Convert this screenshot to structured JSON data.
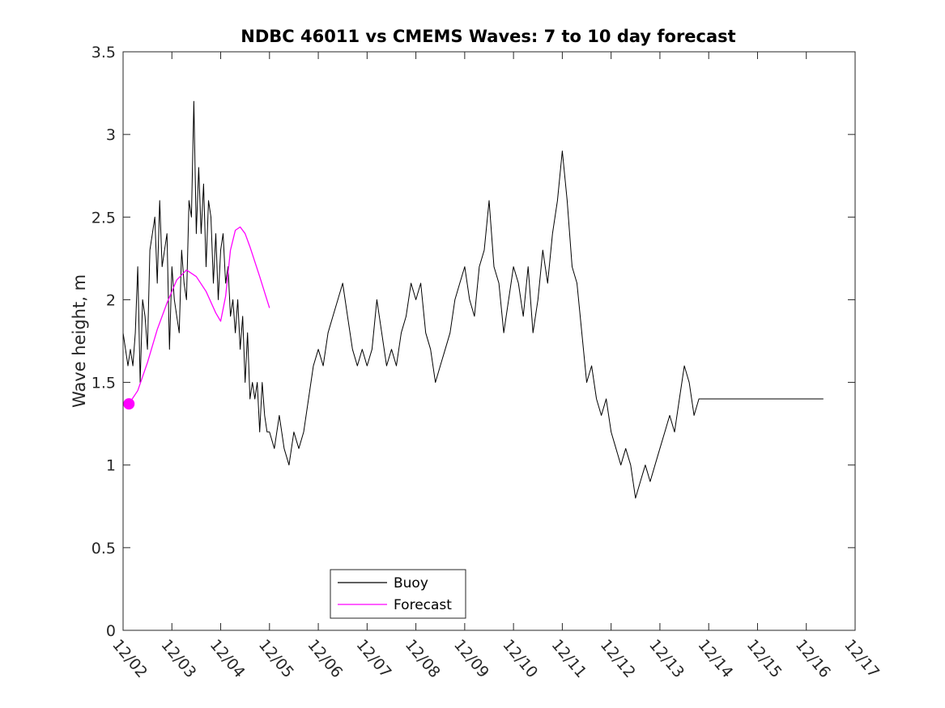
{
  "chart_data": {
    "type": "line",
    "title": "NDBC 46011 vs CMEMS Waves: 7 to 10 day forecast",
    "xlabel": "",
    "ylabel": "Wave height, m",
    "xlim": [
      0,
      15
    ],
    "ylim": [
      0,
      3.5
    ],
    "x_unit": "days since 12/02",
    "x_ticks": [
      0,
      1,
      2,
      3,
      4,
      5,
      6,
      7,
      8,
      9,
      10,
      11,
      12,
      13,
      14,
      15
    ],
    "x_tick_labels": [
      "12/02",
      "12/03",
      "12/04",
      "12/05",
      "12/06",
      "12/07",
      "12/08",
      "12/09",
      "12/10",
      "12/11",
      "12/12",
      "12/13",
      "12/14",
      "12/15",
      "12/16",
      "12/17"
    ],
    "y_ticks": [
      0,
      0.5,
      1,
      1.5,
      2,
      2.5,
      3,
      3.5
    ],
    "y_tick_labels": [
      "0",
      "0.5",
      "1",
      "1.5",
      "2",
      "2.5",
      "3",
      "3.5"
    ],
    "legend": {
      "location": "bottom-left",
      "entries": [
        "Buoy",
        "Forecast"
      ]
    },
    "series": [
      {
        "name": "Buoy",
        "color": "#000000",
        "x": [
          0,
          0.05,
          0.1,
          0.15,
          0.2,
          0.25,
          0.3,
          0.35,
          0.4,
          0.45,
          0.5,
          0.55,
          0.6,
          0.65,
          0.7,
          0.75,
          0.8,
          0.85,
          0.9,
          0.95,
          1,
          1.05,
          1.1,
          1.15,
          1.2,
          1.25,
          1.3,
          1.35,
          1.4,
          1.45,
          1.5,
          1.55,
          1.6,
          1.65,
          1.7,
          1.75,
          1.8,
          1.85,
          1.9,
          1.95,
          2,
          2.05,
          2.1,
          2.15,
          2.2,
          2.25,
          2.3,
          2.35,
          2.4,
          2.45,
          2.5,
          2.55,
          2.6,
          2.65,
          2.7,
          2.75,
          2.8,
          2.85,
          2.9,
          2.95,
          3,
          3.1,
          3.2,
          3.3,
          3.4,
          3.5,
          3.6,
          3.7,
          3.8,
          3.9,
          4,
          4.1,
          4.2,
          4.3,
          4.4,
          4.5,
          4.6,
          4.7,
          4.8,
          4.9,
          5,
          5.1,
          5.2,
          5.3,
          5.4,
          5.5,
          5.6,
          5.7,
          5.8,
          5.9,
          6,
          6.1,
          6.2,
          6.3,
          6.4,
          6.5,
          6.6,
          6.7,
          6.8,
          6.9,
          7,
          7.1,
          7.2,
          7.3,
          7.4,
          7.5,
          7.6,
          7.7,
          7.8,
          7.9,
          8,
          8.1,
          8.2,
          8.3,
          8.4,
          8.5,
          8.6,
          8.7,
          8.8,
          8.9,
          9,
          9.1,
          9.2,
          9.3,
          9.4,
          9.5,
          9.6,
          9.7,
          9.8,
          9.9,
          10,
          10.1,
          10.2,
          10.3,
          10.4,
          10.5,
          10.6,
          10.7,
          10.8,
          10.9,
          11,
          11.1,
          11.2,
          11.3,
          11.4,
          11.5,
          11.6,
          11.7,
          11.8,
          11.9,
          12,
          12.1,
          12.2,
          12.3,
          12.4,
          12.5,
          12.6,
          12.7,
          12.8,
          12.9,
          13,
          13.1,
          13.2,
          13.3,
          13.4,
          13.5,
          13.6,
          13.7,
          13.8,
          13.9,
          14,
          14.1,
          14.2,
          14.3,
          14.35
        ],
        "values": [
          1.8,
          1.7,
          1.6,
          1.7,
          1.6,
          1.8,
          2.2,
          1.5,
          2.0,
          1.9,
          1.7,
          2.3,
          2.4,
          2.5,
          2.1,
          2.6,
          2.2,
          2.3,
          2.4,
          1.7,
          2.2,
          2.0,
          1.9,
          1.8,
          2.3,
          2.1,
          2.0,
          2.6,
          2.5,
          3.2,
          2.4,
          2.8,
          2.4,
          2.7,
          2.2,
          2.6,
          2.5,
          2.1,
          2.4,
          2.0,
          2.3,
          2.4,
          2.1,
          2.2,
          1.9,
          2.0,
          1.8,
          2.0,
          1.7,
          1.9,
          1.5,
          1.8,
          1.4,
          1.5,
          1.4,
          1.5,
          1.2,
          1.5,
          1.3,
          1.2,
          1.2,
          1.1,
          1.3,
          1.1,
          1.0,
          1.2,
          1.1,
          1.2,
          1.4,
          1.6,
          1.7,
          1.6,
          1.8,
          1.9,
          2.0,
          2.1,
          1.9,
          1.7,
          1.6,
          1.7,
          1.6,
          1.7,
          2.0,
          1.8,
          1.6,
          1.7,
          1.6,
          1.8,
          1.9,
          2.1,
          2.0,
          2.1,
          1.8,
          1.7,
          1.5,
          1.6,
          1.7,
          1.8,
          2.0,
          2.1,
          2.2,
          2.0,
          1.9,
          2.2,
          2.3,
          2.6,
          2.2,
          2.1,
          1.8,
          2.0,
          2.2,
          2.1,
          1.9,
          2.2,
          1.8,
          2.0,
          2.3,
          2.1,
          2.4,
          2.6,
          2.9,
          2.6,
          2.2,
          2.1,
          1.8,
          1.5,
          1.6,
          1.4,
          1.3,
          1.4,
          1.2,
          1.1,
          1.0,
          1.1,
          1.0,
          0.8,
          0.9,
          1.0,
          0.9,
          1.0,
          1.1,
          1.2,
          1.3,
          1.2,
          1.4,
          1.6,
          1.5,
          1.3,
          1.4,
          1.4,
          1.4,
          1.4,
          1.4,
          1.4,
          1.4,
          1.4,
          1.4,
          1.4,
          1.4,
          1.4,
          1.4,
          1.4,
          1.4,
          1.4,
          1.4,
          1.4,
          1.4,
          1.4,
          1.4,
          1.4,
          1.4,
          1.4,
          1.4,
          1.4,
          1.4
        ]
      },
      {
        "name": "Forecast",
        "color": "#ff00ff",
        "x": [
          0.12,
          0.3,
          0.5,
          0.7,
          0.9,
          1.1,
          1.3,
          1.5,
          1.7,
          1.9,
          2.0,
          2.1,
          2.2,
          2.3,
          2.4,
          2.5,
          2.6,
          2.8,
          3.0
        ],
        "values": [
          1.37,
          1.45,
          1.62,
          1.82,
          1.98,
          2.12,
          2.18,
          2.14,
          2.05,
          1.92,
          1.87,
          2.02,
          2.3,
          2.42,
          2.44,
          2.4,
          2.32,
          2.14,
          1.95
        ]
      }
    ],
    "start_marker": {
      "series": "Forecast",
      "x": 0.12,
      "value": 1.37,
      "color": "#ff00ff"
    }
  }
}
